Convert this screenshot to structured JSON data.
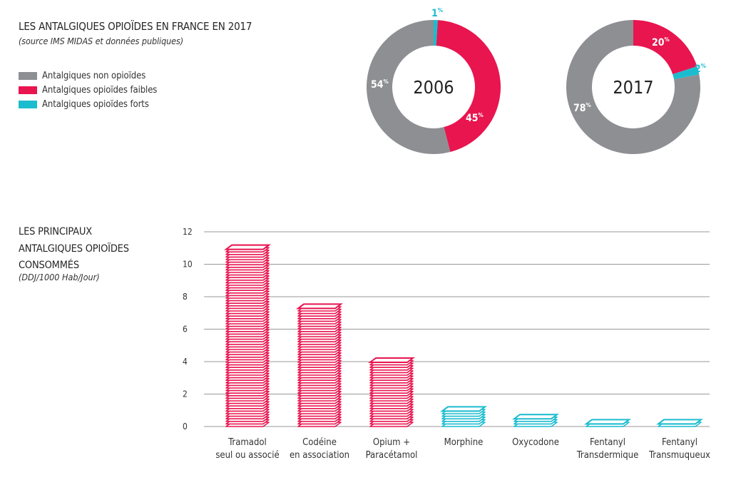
{
  "colors": {
    "non_opioid": "#8e8f93",
    "weak": "#e8154f",
    "strong": "#1cbccf"
  },
  "header": {
    "title": "LES ANTALGIQUES OPIOÏDES EN FRANCE EN 2017",
    "subtitle": "(source IMS MIDAS et données publiques)"
  },
  "legend": [
    {
      "label": "Antalgiques non opioïdes",
      "color": "#8e8f93"
    },
    {
      "label": "Antalgiques opioïdes faibles",
      "color": "#e8154f"
    },
    {
      "label": "Antalgiques opioïdes forts",
      "color": "#1cbccf"
    }
  ],
  "bar_section": {
    "title_lines": [
      "LES PRINCIPAUX",
      "ANTALGIQUES OPIOÏDES",
      "CONSOMMÉS"
    ],
    "subtitle": "(DDJ/1000 Hab/Jour)"
  },
  "chart_data": [
    {
      "type": "pie",
      "center_label": "2006",
      "slices": [
        {
          "category": "Antalgiques opioïdes forts",
          "value": 1,
          "label": "1",
          "color": "#1cbccf"
        },
        {
          "category": "Antalgiques opioïdes faibles",
          "value": 45,
          "label": "45",
          "color": "#e8154f"
        },
        {
          "category": "Antalgiques non opioïdes",
          "value": 54,
          "label": "54",
          "color": "#8e8f93"
        }
      ]
    },
    {
      "type": "pie",
      "center_label": "2017",
      "slices": [
        {
          "category": "Antalgiques opioïdes faibles",
          "value": 20,
          "label": "20",
          "color": "#e8154f"
        },
        {
          "category": "Antalgiques opioïdes forts",
          "value": 2,
          "label": "2",
          "color": "#1cbccf"
        },
        {
          "category": "Antalgiques non opioïdes",
          "value": 78,
          "label": "78",
          "color": "#8e8f93"
        }
      ]
    },
    {
      "type": "bar",
      "categories": [
        [
          "Tramadol",
          "seul ou associé"
        ],
        [
          "Codéine",
          "en association"
        ],
        [
          "Opium +",
          "Paracétamol"
        ],
        [
          "Morphine"
        ],
        [
          "Oxycodone"
        ],
        [
          "Fentanyl",
          "Transdermique"
        ],
        [
          "Fentanyl",
          "Transmuqueux"
        ]
      ],
      "values": [
        11.1,
        7.5,
        4.1,
        1.1,
        0.7,
        0.3,
        0.15
      ],
      "colors": [
        "#e8154f",
        "#e8154f",
        "#e8154f",
        "#1cbccf",
        "#1cbccf",
        "#1cbccf",
        "#1cbccf"
      ],
      "ylim": [
        0,
        12
      ],
      "yticks": [
        0,
        2,
        4,
        6,
        8,
        10,
        12
      ],
      "grid": true
    }
  ]
}
